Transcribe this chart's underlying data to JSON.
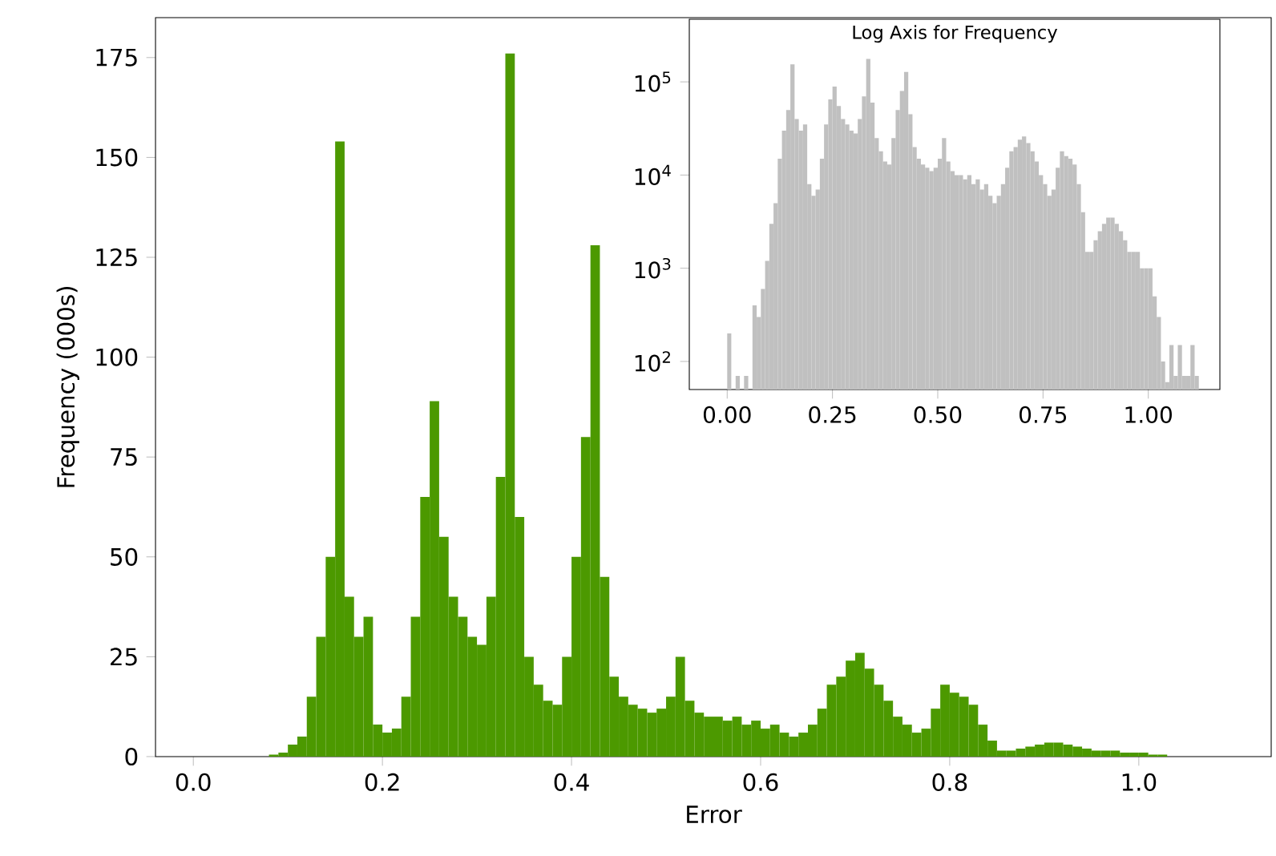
{
  "chart_data": [
    {
      "type": "histogram",
      "xlabel": "Error",
      "ylabel": "Frequency (000s)",
      "color": "#4c9900",
      "bins": [
        0.08,
        0.09,
        0.1,
        0.11,
        0.12,
        0.13,
        0.14,
        0.15,
        0.16,
        0.17,
        0.18,
        0.19,
        0.2,
        0.21,
        0.22,
        0.23,
        0.24,
        0.25,
        0.26,
        0.27,
        0.28,
        0.29,
        0.3,
        0.31,
        0.32,
        0.33,
        0.34,
        0.35,
        0.36,
        0.37,
        0.38,
        0.39,
        0.4,
        0.41,
        0.42,
        0.43,
        0.44,
        0.45,
        0.46,
        0.47,
        0.48,
        0.49,
        0.5,
        0.51,
        0.52,
        0.53,
        0.54,
        0.55,
        0.56,
        0.57,
        0.58,
        0.59,
        0.6,
        0.61,
        0.62,
        0.63,
        0.64,
        0.65,
        0.66,
        0.67,
        0.68,
        0.69,
        0.7,
        0.71,
        0.72,
        0.73,
        0.74,
        0.75,
        0.76,
        0.77,
        0.78,
        0.79,
        0.8,
        0.81,
        0.82,
        0.83,
        0.84,
        0.85,
        0.86,
        0.87,
        0.88,
        0.89,
        0.9,
        0.91,
        0.92,
        0.93,
        0.94,
        0.95,
        0.96,
        0.97,
        0.98,
        0.99,
        1.0,
        1.01,
        1.02,
        1.03
      ],
      "values": [
        0.5,
        1,
        3,
        5,
        15,
        30,
        50,
        154,
        40,
        30,
        35,
        8,
        6,
        7,
        15,
        35,
        65,
        89,
        55,
        40,
        35,
        30,
        28,
        40,
        70,
        176,
        60,
        25,
        18,
        14,
        13,
        25,
        50,
        80,
        128,
        45,
        20,
        15,
        13,
        12,
        11,
        12,
        15,
        25,
        14,
        11,
        10,
        10,
        9,
        10,
        8,
        9,
        7,
        8,
        6,
        5,
        6,
        8,
        12,
        18,
        20,
        24,
        26,
        22,
        18,
        14,
        10,
        8,
        6,
        7,
        12,
        18,
        16,
        15,
        13,
        8,
        4,
        1.5,
        1.5,
        2,
        2.5,
        3,
        3.5,
        3.5,
        3,
        2.5,
        2,
        1.5,
        1.5,
        1.5,
        1,
        1,
        1,
        0.5,
        0.5
      ],
      "xlim": [
        -0.04,
        1.14
      ],
      "ylim": [
        0,
        185
      ],
      "xticks": [
        {
          "value": 0,
          "label": "0.0"
        },
        {
          "value": 0.2,
          "label": "0.2"
        },
        {
          "value": 0.4,
          "label": "0.4"
        },
        {
          "value": 0.6,
          "label": "0.6"
        },
        {
          "value": 0.8,
          "label": "0.8"
        },
        {
          "value": 1.0,
          "label": "1.0"
        }
      ],
      "yticks": [
        0,
        25,
        50,
        75,
        100,
        125,
        150,
        175
      ]
    },
    {
      "type": "histogram",
      "title": "Log Axis for Frequency",
      "color": "#c0c0c0",
      "log": "y",
      "bins": [
        0.0,
        0.01,
        0.02,
        0.03,
        0.04,
        0.05,
        0.06,
        0.07,
        0.08,
        0.09,
        0.1,
        0.11,
        0.12,
        0.13,
        0.14,
        0.15,
        0.16,
        0.17,
        0.18,
        0.19,
        0.2,
        0.21,
        0.22,
        0.23,
        0.24,
        0.25,
        0.26,
        0.27,
        0.28,
        0.29,
        0.3,
        0.31,
        0.32,
        0.33,
        0.34,
        0.35,
        0.36,
        0.37,
        0.38,
        0.39,
        0.4,
        0.41,
        0.42,
        0.43,
        0.44,
        0.45,
        0.46,
        0.47,
        0.48,
        0.49,
        0.5,
        0.51,
        0.52,
        0.53,
        0.54,
        0.55,
        0.56,
        0.57,
        0.58,
        0.59,
        0.6,
        0.61,
        0.62,
        0.63,
        0.64,
        0.65,
        0.66,
        0.67,
        0.68,
        0.69,
        0.7,
        0.71,
        0.72,
        0.73,
        0.74,
        0.75,
        0.76,
        0.77,
        0.78,
        0.79,
        0.8,
        0.81,
        0.82,
        0.83,
        0.84,
        0.85,
        0.86,
        0.87,
        0.88,
        0.89,
        0.9,
        0.91,
        0.92,
        0.93,
        0.94,
        0.95,
        0.96,
        0.97,
        0.98,
        0.99,
        1.0,
        1.01,
        1.02,
        1.03,
        1.04,
        1.05,
        1.06,
        1.07,
        1.08,
        1.09,
        1.1,
        1.11,
        1.12
      ],
      "values": [
        200,
        null,
        70,
        null,
        70,
        null,
        400,
        300,
        600,
        1200,
        3000,
        5000,
        15000,
        30000,
        50000,
        154000,
        40000,
        30000,
        35000,
        8000,
        6000,
        7000,
        15000,
        35000,
        65000,
        89000,
        55000,
        40000,
        35000,
        30000,
        28000,
        40000,
        70000,
        176000,
        60000,
        25000,
        18000,
        14000,
        13000,
        25000,
        50000,
        80000,
        128000,
        45000,
        20000,
        15000,
        13000,
        12000,
        11000,
        12000,
        15000,
        25000,
        14000,
        11000,
        10000,
        10000,
        9000,
        10000,
        8000,
        9000,
        7000,
        8000,
        6000,
        5000,
        6000,
        8000,
        12000,
        18000,
        20000,
        24000,
        26000,
        22000,
        18000,
        14000,
        10000,
        8000,
        6000,
        7000,
        12000,
        18000,
        16000,
        15000,
        13000,
        8000,
        4000,
        1500,
        1500,
        2000,
        2500,
        3000,
        3500,
        3500,
        3000,
        2500,
        2000,
        1500,
        1500,
        1500,
        1000,
        1000,
        1000,
        500,
        300,
        100,
        60,
        150,
        70,
        150,
        70,
        70,
        150,
        70
      ],
      "xlim": [
        -0.09,
        1.17
      ],
      "ylim": [
        50,
        470000
      ],
      "xticks": [
        {
          "value": 0,
          "label": "0.00"
        },
        {
          "value": 0.25,
          "label": "0.25"
        },
        {
          "value": 0.5,
          "label": "0.50"
        },
        {
          "value": 0.75,
          "label": "0.75"
        },
        {
          "value": 1.0,
          "label": "1.00"
        }
      ],
      "yticks": [
        {
          "value": 100,
          "label": "10$^{2}$"
        },
        {
          "value": 1000,
          "label": "10$^{3}$"
        },
        {
          "value": 10000,
          "label": "10$^{4}$"
        },
        {
          "value": 100000,
          "label": "10$^{5}$"
        }
      ]
    }
  ]
}
